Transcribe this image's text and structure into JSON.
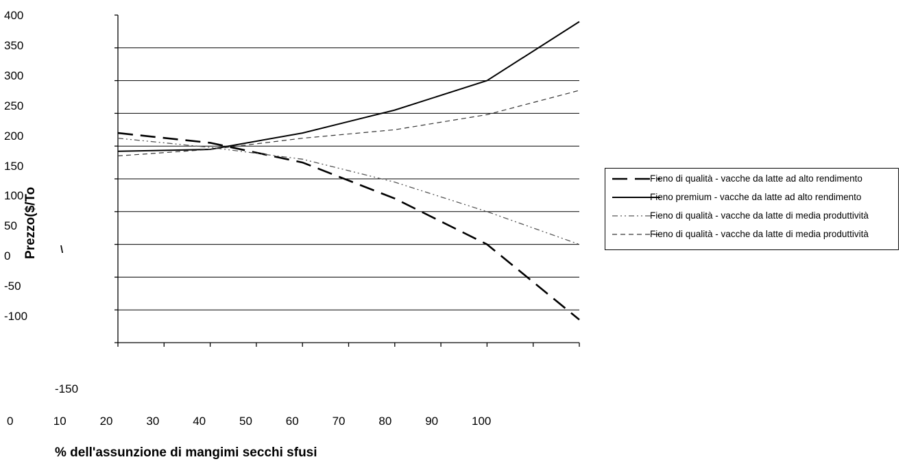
{
  "chart_data": {
    "type": "line",
    "title": "",
    "xlabel": "% dell'assunzione di mangimi secchi sfusi",
    "ylabel": "Prezzo($/To",
    "ylabel_fragment": "\\",
    "x": [
      0,
      20,
      40,
      60,
      80,
      100
    ],
    "x_tick_labels": [
      "0",
      "10",
      "20",
      "30",
      "40",
      "50",
      "60",
      "70",
      "80",
      "90",
      "100"
    ],
    "y_tick_labels": [
      "400",
      "350",
      "300",
      "250",
      "200",
      "150",
      "100",
      "50",
      "0",
      "-50",
      "-100"
    ],
    "y_extra_label": "-150",
    "ylim": [
      -100,
      400
    ],
    "grid": true,
    "legend_position": "right",
    "series": [
      {
        "name": "Fieno di qualità - vacche da latte ad alto rendimento",
        "style": "long-dash",
        "values": [
          220,
          205,
          175,
          120,
          50,
          -65
        ]
      },
      {
        "name": "Fieno premium - vacche da latte ad alto rendimento",
        "style": "solid",
        "values": [
          192,
          195,
          220,
          255,
          300,
          390
        ]
      },
      {
        "name": "Fieno di qualità - vacche da latte di media produttività",
        "style": "dash-dot-dot",
        "values": [
          212,
          198,
          180,
          145,
          100,
          50
        ]
      },
      {
        "name": "Fieno di qualità - vacche da latte di media produttività",
        "style": "short-dash",
        "values": [
          185,
          195,
          212,
          225,
          248,
          285
        ]
      }
    ]
  }
}
